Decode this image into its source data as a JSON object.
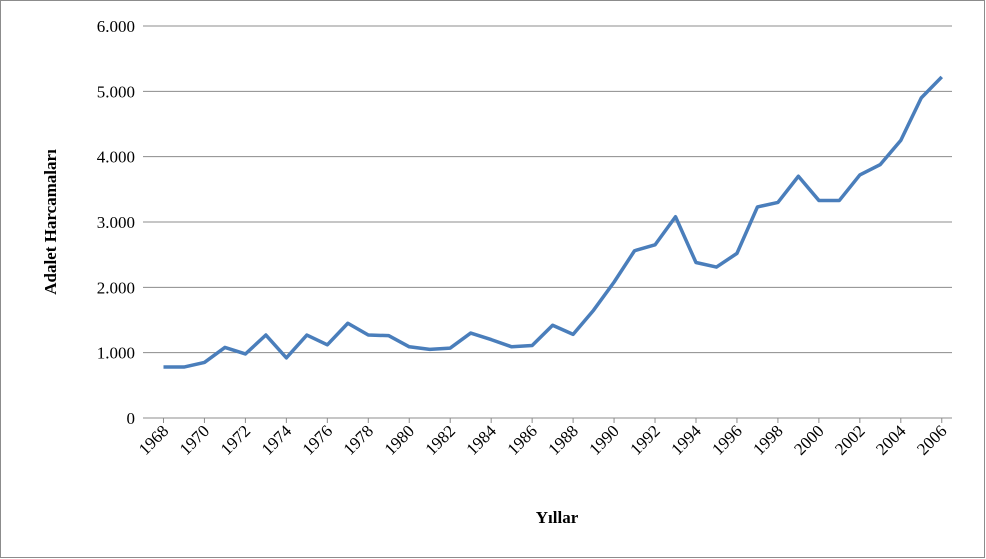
{
  "chart_data": {
    "type": "line",
    "y_label": "Adalet Harcamaları",
    "x_label": "Yıllar",
    "x": [
      1968,
      1969,
      1970,
      1971,
      1972,
      1973,
      1974,
      1975,
      1976,
      1977,
      1978,
      1979,
      1980,
      1981,
      1982,
      1983,
      1984,
      1985,
      1986,
      1987,
      1988,
      1989,
      1990,
      1991,
      1992,
      1993,
      1994,
      1995,
      1996,
      1997,
      1998,
      1999,
      2000,
      2001,
      2002,
      2003,
      2004,
      2005,
      2006
    ],
    "series": [
      {
        "color": "#4a7ebb",
        "values": [
          780,
          780,
          850,
          1080,
          980,
          1270,
          920,
          1270,
          1120,
          1450,
          1270,
          1260,
          1090,
          1050,
          1070,
          1300,
          1200,
          1090,
          1110,
          1420,
          1280,
          1650,
          2080,
          2560,
          2650,
          3080,
          2380,
          2310,
          2520,
          3230,
          3300,
          3700,
          3330,
          3330,
          3720,
          3880,
          4250,
          4900,
          5220
        ]
      }
    ],
    "xlim": [
      1967,
      2006.5
    ],
    "xticks": [
      1968,
      1970,
      1972,
      1974,
      1976,
      1978,
      1980,
      1982,
      1984,
      1986,
      1988,
      1990,
      1992,
      1994,
      1996,
      1998,
      2000,
      2002,
      2004,
      2006
    ],
    "ylim": [
      0,
      6000
    ],
    "yticks": [
      0,
      {
        "value": 1000,
        "label": "1.000"
      },
      {
        "value": 2000,
        "label": "2.000"
      },
      {
        "value": 3000,
        "label": "3.000"
      },
      {
        "value": 4000,
        "label": "4.000"
      },
      {
        "value": 5000,
        "label": "5.000"
      },
      {
        "value": 6000,
        "label": "6.000"
      }
    ],
    "grid": true
  }
}
